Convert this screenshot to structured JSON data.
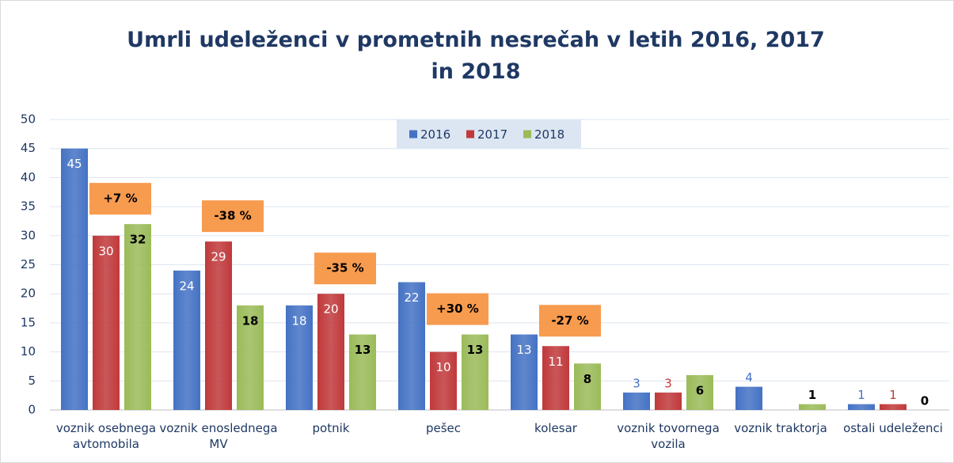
{
  "chart_data": {
    "type": "bar",
    "title": "Umrli udeleženci v prometnih nesrečah v letih 2016, 2017 in 2018",
    "categories": [
      "voznik osebnega avtomobila",
      "voznik enoslednega MV",
      "potnik",
      "pešec",
      "kolesar",
      "voznik tovornega vozila",
      "voznik traktorja",
      "ostali udeleženci"
    ],
    "series": [
      {
        "name": "2016",
        "color": "#4472c4",
        "values": [
          45,
          24,
          18,
          22,
          13,
          3,
          4,
          1
        ]
      },
      {
        "name": "2017",
        "color": "#c0393b",
        "values": [
          30,
          29,
          20,
          10,
          11,
          3,
          null,
          1
        ]
      },
      {
        "name": "2018",
        "color": "#9bbb59",
        "values": [
          32,
          18,
          13,
          13,
          8,
          6,
          1,
          0
        ]
      }
    ],
    "annotations": [
      "+7 %",
      "-38 %",
      "-35 %",
      "+30 %",
      "-27 %"
    ],
    "ylim": [
      0,
      50
    ],
    "yticks": [
      0,
      5,
      10,
      15,
      20,
      25,
      30,
      35,
      40,
      45,
      50
    ],
    "grid": true,
    "legend": "top"
  }
}
